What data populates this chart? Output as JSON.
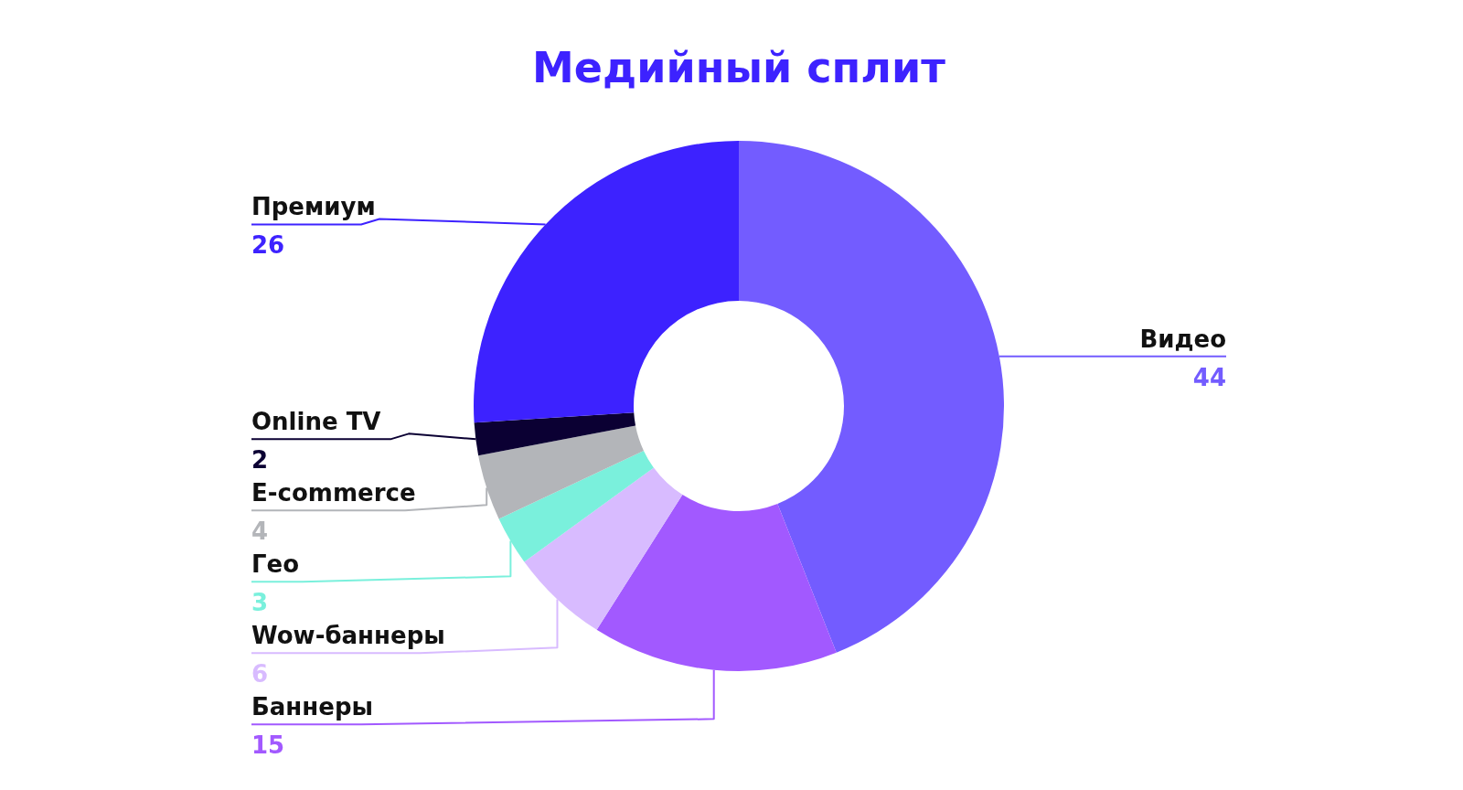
{
  "chart_data": {
    "type": "donut",
    "title": "Медийный сплит",
    "categories": [
      "Видео",
      "Баннеры",
      "Wow-баннеры",
      "Гео",
      "E-commerce",
      "Online TV",
      "Премиум"
    ],
    "values": [
      44,
      15,
      6,
      3,
      4,
      2,
      26
    ],
    "colors": [
      "#735cff",
      "#a259ff",
      "#d8bbff",
      "#7af0dc",
      "#b3b5b9",
      "#0b0033",
      "#3d22ff"
    ],
    "data_labels": true
  }
}
